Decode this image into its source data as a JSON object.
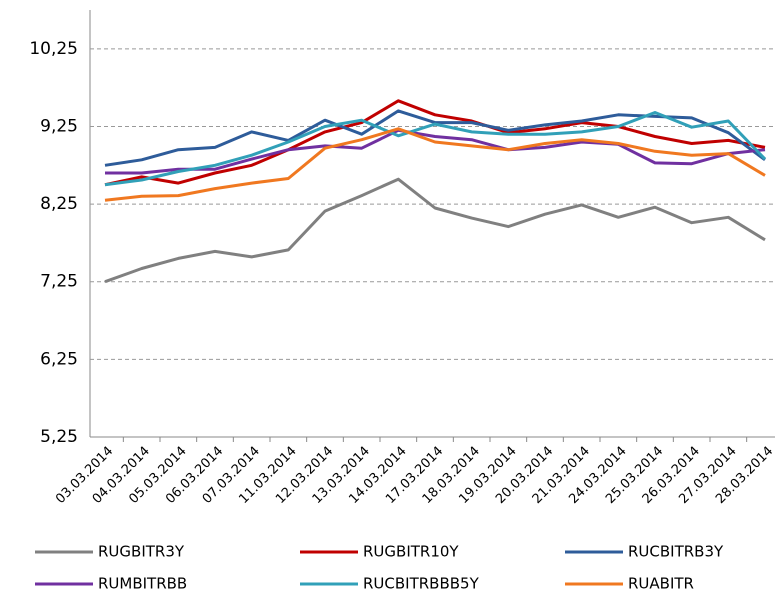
{
  "chart_data": {
    "type": "line",
    "categories": [
      "03.03.2014",
      "04.03.2014",
      "05.03.2014",
      "06.03.2014",
      "07.03.2014",
      "11.03.2014",
      "12.03.2014",
      "13.03.2014",
      "14.03.2014",
      "17.03.2014",
      "18.03.2014",
      "19.03.2014",
      "20.03.2014",
      "21.03.2014",
      "24.03.2014",
      "25.03.2014",
      "26.03.2014",
      "27.03.2014",
      "28.03.2014"
    ],
    "series": [
      {
        "name": "RUGBITR3Y",
        "color": "#808080",
        "values": [
          7.25,
          7.42,
          7.55,
          7.64,
          7.57,
          7.66,
          8.16,
          8.36,
          8.57,
          8.2,
          8.07,
          7.96,
          8.12,
          8.24,
          8.08,
          8.21,
          8.01,
          8.08,
          7.79
        ]
      },
      {
        "name": "RUGBITR10Y",
        "color": "#c00000",
        "values": [
          8.5,
          8.6,
          8.52,
          8.65,
          8.75,
          8.95,
          9.18,
          9.3,
          9.58,
          9.4,
          9.32,
          9.17,
          9.22,
          9.3,
          9.25,
          9.12,
          9.03,
          9.07,
          8.98
        ]
      },
      {
        "name": "RUCBITRB3Y",
        "color": "#2e5c9a",
        "values": [
          8.75,
          8.82,
          8.95,
          8.98,
          9.18,
          9.07,
          9.33,
          9.15,
          9.45,
          9.3,
          9.3,
          9.2,
          9.27,
          9.32,
          9.4,
          9.38,
          9.36,
          9.17,
          8.82
        ]
      },
      {
        "name": "RUMBITRBB",
        "color": "#7030a0",
        "values": [
          8.65,
          8.65,
          8.7,
          8.7,
          8.83,
          8.95,
          9.0,
          8.97,
          9.2,
          9.12,
          9.08,
          8.95,
          8.98,
          9.05,
          9.02,
          8.78,
          8.77,
          8.9,
          8.95
        ]
      },
      {
        "name": "RUCBITRBBB5Y",
        "color": "#31a0b8",
        "values": [
          8.5,
          8.56,
          8.67,
          8.75,
          8.88,
          9.05,
          9.25,
          9.33,
          9.13,
          9.28,
          9.18,
          9.15,
          9.15,
          9.18,
          9.25,
          9.43,
          9.24,
          9.32,
          8.83
        ]
      },
      {
        "name": "RUABITR",
        "color": "#f07820",
        "values": [
          8.3,
          8.35,
          8.36,
          8.45,
          8.52,
          8.58,
          8.97,
          9.08,
          9.22,
          9.05,
          9.0,
          8.95,
          9.03,
          9.08,
          9.03,
          8.93,
          8.88,
          8.9,
          8.62
        ]
      }
    ],
    "ylim": [
      5.25,
      10.75
    ],
    "yticks": [
      {
        "value": 5.25,
        "label": "5,25"
      },
      {
        "value": 6.25,
        "label": "6,25"
      },
      {
        "value": 7.25,
        "label": "7,25"
      },
      {
        "value": 8.25,
        "label": "8,25"
      },
      {
        "value": 9.25,
        "label": "9,25"
      },
      {
        "value": 10.25,
        "label": "10,25"
      }
    ],
    "grid": true
  }
}
